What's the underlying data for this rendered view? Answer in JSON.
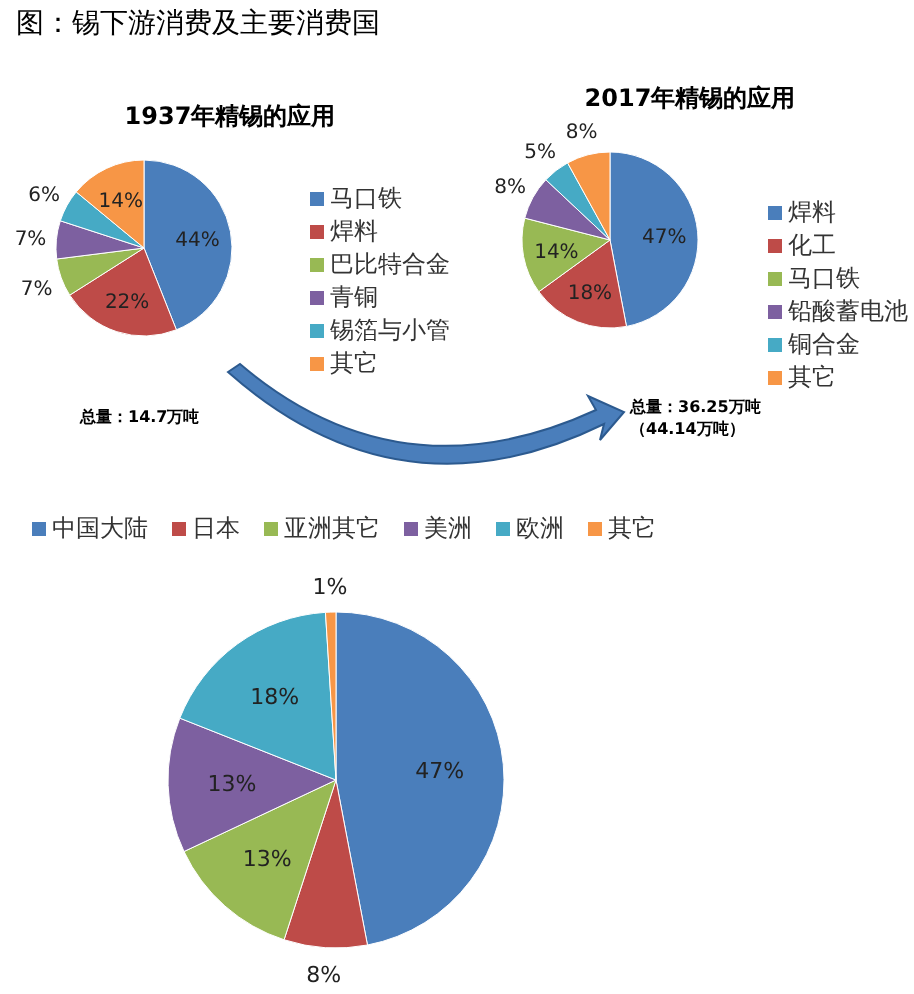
{
  "chart_data": [
    {
      "type": "pie",
      "title": "1937年精锡的应用",
      "categories": [
        "马口铁",
        "焊料",
        "巴比特合金",
        "青铜",
        "锡箔与小管",
        "其它"
      ],
      "values": [
        44,
        22,
        7,
        7,
        6,
        14
      ],
      "colors": [
        "#4a7ebb",
        "#be4b48",
        "#98b954",
        "#7d60a0",
        "#46aac5",
        "#f79646"
      ],
      "value_labels": [
        "44%",
        "22%",
        "7%",
        "7%",
        "6%",
        "14%"
      ],
      "legend": "right",
      "annotations": [
        "图：锡下游消费及主要消费国",
        "总量：14.7万吨"
      ]
    },
    {
      "type": "pie",
      "title": "2017年精锡的应用",
      "categories": [
        "焊料",
        "化工",
        "马口铁",
        "铅酸蓄电池",
        "铜合金",
        "其它"
      ],
      "values": [
        47,
        18,
        14,
        8,
        5,
        8
      ],
      "colors": [
        "#4a7ebb",
        "#be4b48",
        "#98b954",
        "#7d60a0",
        "#46aac5",
        "#f79646"
      ],
      "value_labels": [
        "47%",
        "18%",
        "14%",
        "8%",
        "5%",
        "8%"
      ],
      "legend": "right",
      "annotations": [
        "总量：36.25万吨（44.14万吨）"
      ]
    },
    {
      "type": "pie",
      "categories": [
        "中国大陆",
        "日本",
        "亚洲其它",
        "美洲",
        "欧洲",
        "其它"
      ],
      "values": [
        47,
        8,
        13,
        13,
        18,
        1
      ],
      "colors": [
        "#4a7ebb",
        "#be4b48",
        "#98b954",
        "#7d60a0",
        "#46aac5",
        "#f79646"
      ],
      "value_labels": [
        "47%",
        "8%",
        "13%",
        "13%",
        "18%",
        "1%"
      ],
      "legend": "top"
    }
  ]
}
